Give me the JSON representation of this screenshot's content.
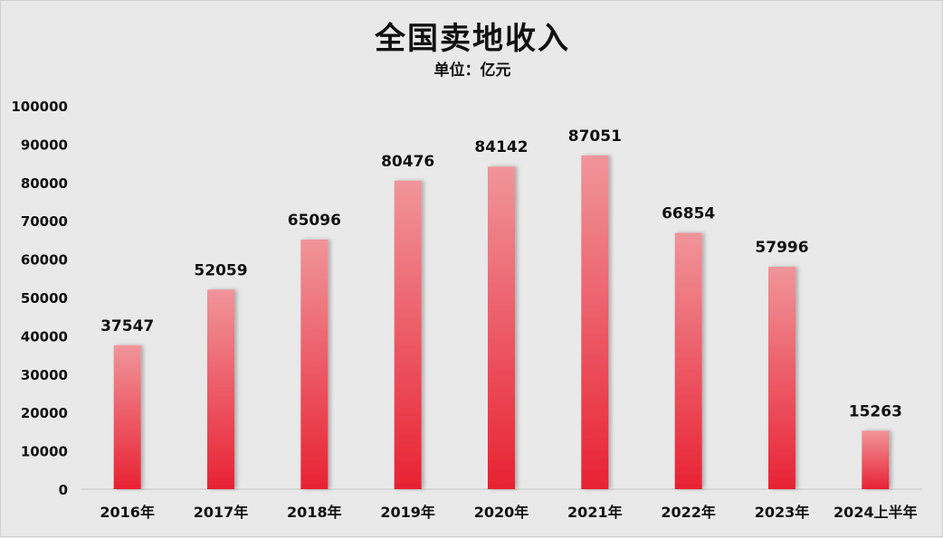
{
  "chart_data": {
    "type": "bar",
    "title": "全国卖地收入",
    "subtitle": "单位：亿元",
    "categories": [
      "2016年",
      "2017年",
      "2018年",
      "2019年",
      "2020年",
      "2021年",
      "2022年",
      "2023年",
      "2024上半年"
    ],
    "series": [
      {
        "values": [
          37547,
          52059,
          65096,
          80476,
          84142,
          87051,
          66854,
          57996,
          15263
        ]
      }
    ],
    "ylim": [
      0,
      100000
    ],
    "yticks": [
      0,
      10000,
      20000,
      30000,
      40000,
      50000,
      60000,
      70000,
      80000,
      90000,
      100000
    ],
    "grid": false,
    "legend": "none",
    "colors": {
      "bar_top": "#f0959a",
      "bar_bottom": "#e82234",
      "text": "#111111",
      "background": "#e9e9e9"
    }
  }
}
